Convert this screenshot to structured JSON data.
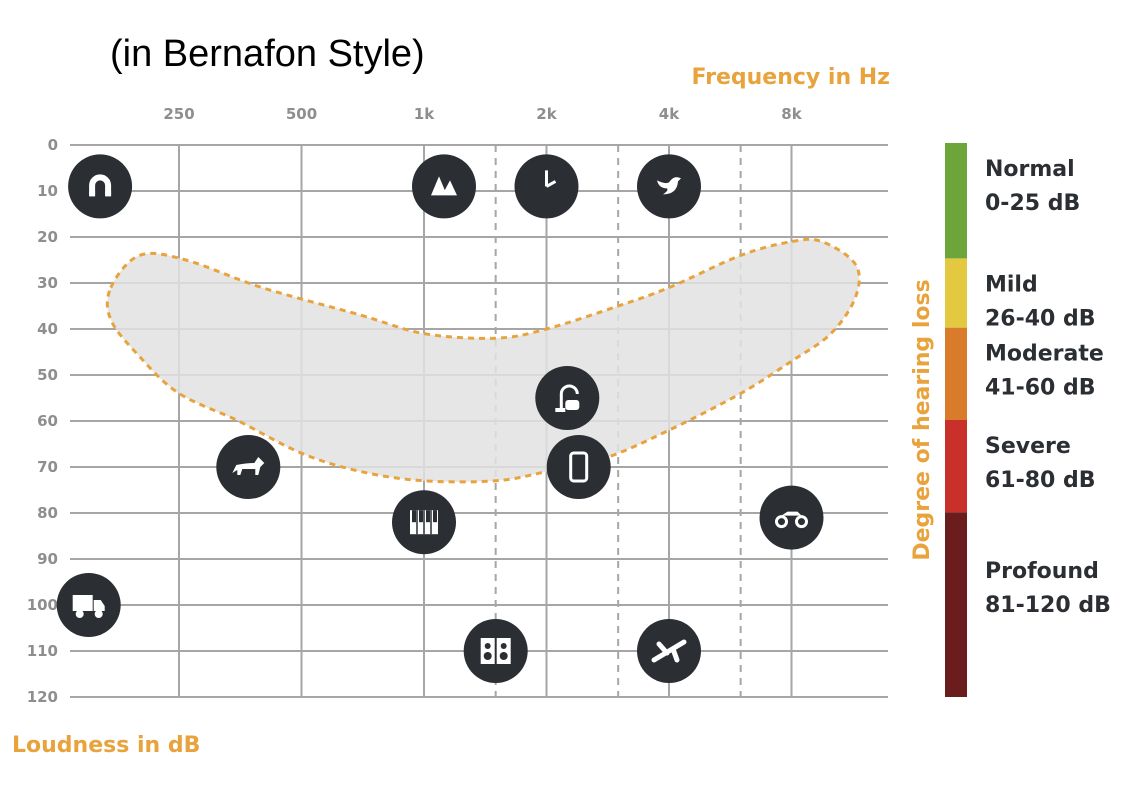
{
  "subtitle": "(in Bernafon Style)",
  "chart_data": {
    "type": "scatter",
    "title": "",
    "xlabel": "Frequency in Hz",
    "ylabel": "Loudness in dB",
    "side_label": "Degree of hearing loss",
    "x_ticks": [
      "250",
      "500",
      "1k",
      "2k",
      "4k",
      "8k"
    ],
    "x_tick_values": [
      250,
      500,
      1000,
      2000,
      4000,
      8000
    ],
    "x_intermediate_dashed": [
      1500,
      3000,
      6000
    ],
    "x_scale": "log2",
    "xlim": [
      140,
      13000
    ],
    "y_ticks": [
      "0",
      "10",
      "20",
      "30",
      "40",
      "50",
      "60",
      "70",
      "80",
      "90",
      "100",
      "110",
      "120"
    ],
    "ylim": [
      0,
      120
    ],
    "y_inverted": true,
    "grid": true,
    "speech_banana": {
      "fill": "#e2e2e2",
      "stroke": "#e8a33c",
      "upper": [
        [
          170,
          31
        ],
        [
          200,
          24
        ],
        [
          260,
          25
        ],
        [
          400,
          31
        ],
        [
          700,
          37
        ],
        [
          1000,
          41
        ],
        [
          1500,
          42
        ],
        [
          2000,
          40
        ],
        [
          3000,
          35
        ],
        [
          4000,
          31
        ],
        [
          6000,
          24
        ],
        [
          8000,
          21
        ],
        [
          9500,
          21
        ],
        [
          11500,
          26
        ]
      ],
      "lower": [
        [
          11500,
          33
        ],
        [
          10000,
          41
        ],
        [
          8000,
          47
        ],
        [
          6000,
          54
        ],
        [
          4000,
          62
        ],
        [
          2800,
          68
        ],
        [
          2000,
          71
        ],
        [
          1500,
          73
        ],
        [
          1000,
          73
        ],
        [
          700,
          71
        ],
        [
          500,
          67
        ],
        [
          350,
          60
        ],
        [
          250,
          54
        ],
        [
          200,
          46
        ],
        [
          170,
          38
        ]
      ]
    },
    "sounds": [
      {
        "name": "magnet",
        "icon": "magnet-icon",
        "x": 160,
        "y": 9
      },
      {
        "name": "trees",
        "icon": "trees-icon",
        "x": 1120,
        "y": 9
      },
      {
        "name": "clock",
        "icon": "clock-icon",
        "x": 2000,
        "y": 9
      },
      {
        "name": "bird",
        "icon": "bird-icon",
        "x": 4000,
        "y": 9
      },
      {
        "name": "vacuum cleaner",
        "icon": "vacuum-icon",
        "x": 2250,
        "y": 55
      },
      {
        "name": "phone",
        "icon": "phone-icon",
        "x": 2400,
        "y": 70
      },
      {
        "name": "dog",
        "icon": "dog-icon",
        "x": 370,
        "y": 70
      },
      {
        "name": "piano",
        "icon": "piano-icon",
        "x": 1000,
        "y": 82
      },
      {
        "name": "motorcycle",
        "icon": "motorcycle-icon",
        "x": 8000,
        "y": 81
      },
      {
        "name": "truck",
        "icon": "truck-icon",
        "x": 150,
        "y": 100
      },
      {
        "name": "speakers",
        "icon": "speakers-icon",
        "x": 1500,
        "y": 110
      },
      {
        "name": "airplane",
        "icon": "airplane-icon",
        "x": 4000,
        "y": 110
      }
    ],
    "bands": [
      {
        "name": "Normal",
        "range": "0-25 dB",
        "from": 0,
        "to": 25,
        "color": "#6ca53a"
      },
      {
        "name": "Mild",
        "range": "26-40 dB",
        "from": 25,
        "to": 40,
        "color": "#e2c93f"
      },
      {
        "name": "Moderate",
        "range": "41-60 dB",
        "from": 40,
        "to": 60,
        "color": "#d87c2c"
      },
      {
        "name": "Severe",
        "range": "61-80 dB",
        "from": 60,
        "to": 80,
        "color": "#c9302a"
      },
      {
        "name": "Profound",
        "range": "81-120 dB",
        "from": 80,
        "to": 120,
        "color": "#6b1c1c"
      }
    ],
    "colors": {
      "icon_bg": "#2b2f33",
      "grid": "#a6a6a6",
      "accent": "#e8a33c"
    }
  }
}
